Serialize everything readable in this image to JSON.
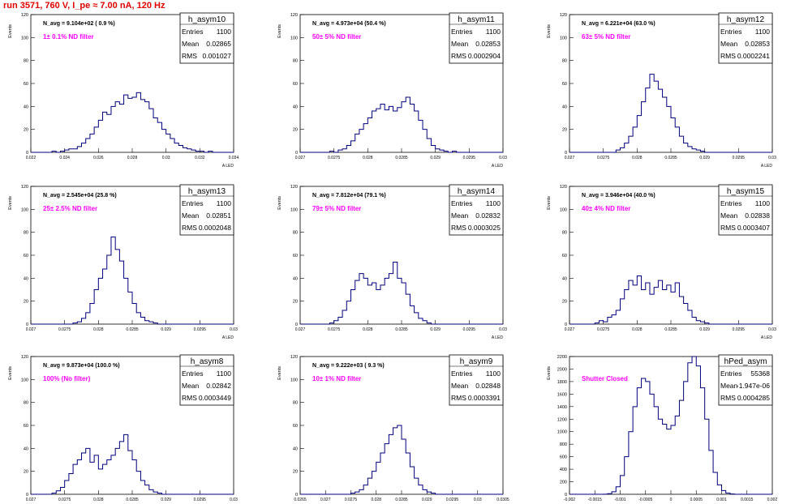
{
  "page": {
    "title": "run 3571,   760 V, I_pe ≈ 7.00 nA, 120 Hz"
  },
  "chart_data": [
    {
      "type": "histogram",
      "name": "h_asym10",
      "stats": {
        "entries": "1100",
        "mean": "0.02865",
        "rms": "0.001027"
      },
      "navg": "N_avg = 9.104e+02 ( 0.9 %)",
      "filter": "1± 0.1% ND filter",
      "xlim": [
        0.022,
        0.034
      ],
      "ylim": [
        0,
        120
      ],
      "xticks": [
        "0.022",
        "0.024",
        "0.026",
        "0.028",
        "0.03",
        "0.032",
        "0.034"
      ],
      "yticks": [
        "0",
        "20",
        "40",
        "60",
        "80",
        "100",
        "120"
      ],
      "ylabel": "Events",
      "xlabel": "A LED",
      "values": [
        0,
        0,
        0,
        0,
        0,
        1,
        0,
        1,
        2,
        3,
        3,
        5,
        8,
        12,
        16,
        22,
        28,
        35,
        33,
        40,
        44,
        42,
        50,
        47,
        48,
        52,
        46,
        44,
        38,
        30,
        26,
        20,
        16,
        12,
        8,
        6,
        4,
        3,
        2,
        1,
        1,
        0,
        1,
        0,
        0,
        0,
        0,
        0
      ]
    },
    {
      "type": "histogram",
      "name": "h_asym11",
      "stats": {
        "entries": "1100",
        "mean": "0.02853",
        "rms": "0.0002904"
      },
      "navg": "N_avg = 4.973e+04 (50.4 %)",
      "filter": "50± 5% ND filter",
      "xlim": [
        0.027,
        0.03
      ],
      "ylim": [
        0,
        120
      ],
      "xticks": [
        "0.027",
        "0.0275",
        "0.028",
        "0.0285",
        "0.029",
        "0.0295",
        "0.03"
      ],
      "yticks": [
        "0",
        "20",
        "40",
        "60",
        "80",
        "100",
        "120"
      ],
      "ylabel": "Events",
      "xlabel": "A LED",
      "values": [
        0,
        0,
        0,
        0,
        0,
        0,
        0,
        1,
        0,
        2,
        3,
        6,
        10,
        16,
        20,
        25,
        30,
        36,
        38,
        42,
        37,
        40,
        36,
        39,
        44,
        48,
        42,
        36,
        28,
        20,
        12,
        6,
        3,
        2,
        1,
        0,
        1,
        0,
        0,
        0,
        0,
        0,
        0,
        0,
        0,
        0,
        0,
        0
      ]
    },
    {
      "type": "histogram",
      "name": "h_asym12",
      "stats": {
        "entries": "1100",
        "mean": "0.02853",
        "rms": "0.0002241"
      },
      "navg": "N_avg = 6.221e+04 (63.0 %)",
      "filter": "63± 5% ND filter",
      "xlim": [
        0.027,
        0.03
      ],
      "ylim": [
        0,
        120
      ],
      "xticks": [
        "0.027",
        "0.0275",
        "0.028",
        "0.0285",
        "0.029",
        "0.0295",
        "0.03"
      ],
      "yticks": [
        "0",
        "20",
        "40",
        "60",
        "80",
        "100",
        "120"
      ],
      "ylabel": "Events",
      "xlabel": "A LED",
      "values": [
        0,
        0,
        0,
        0,
        0,
        0,
        0,
        0,
        0,
        0,
        0,
        2,
        4,
        8,
        14,
        22,
        32,
        44,
        56,
        68,
        62,
        55,
        48,
        40,
        30,
        22,
        14,
        8,
        5,
        3,
        2,
        1,
        0,
        0,
        0,
        0,
        0,
        0,
        0,
        0,
        0,
        0,
        0,
        0,
        0,
        0,
        0,
        0
      ]
    },
    {
      "type": "histogram",
      "name": "h_asym13",
      "stats": {
        "entries": "1100",
        "mean": "0.02851",
        "rms": "0.0002048"
      },
      "navg": "N_avg = 2.545e+04 (25.8 %)",
      "filter": "25± 2.5% ND filter",
      "xlim": [
        0.027,
        0.03
      ],
      "ylim": [
        0,
        120
      ],
      "xticks": [
        "0.027",
        "0.0275",
        "0.028",
        "0.0285",
        "0.029",
        "0.0295",
        "0.03"
      ],
      "yticks": [
        "0",
        "20",
        "40",
        "60",
        "80",
        "100",
        "120"
      ],
      "ylabel": "Events",
      "xlabel": "A LED",
      "values": [
        0,
        0,
        0,
        0,
        0,
        0,
        0,
        0,
        0,
        0,
        1,
        2,
        5,
        10,
        18,
        30,
        40,
        48,
        60,
        76,
        65,
        55,
        40,
        28,
        18,
        10,
        6,
        3,
        2,
        1,
        0,
        0,
        0,
        0,
        0,
        0,
        0,
        0,
        0,
        0,
        0,
        0,
        0,
        0,
        0,
        0,
        0,
        0
      ]
    },
    {
      "type": "histogram",
      "name": "h_asym14",
      "stats": {
        "entries": "1100",
        "mean": "0.02832",
        "rms": "0.0003025"
      },
      "navg": "N_avg = 7.812e+04 (79.1 %)",
      "filter": "79± 5% ND filter",
      "xlim": [
        0.027,
        0.03
      ],
      "ylim": [
        0,
        120
      ],
      "xticks": [
        "0.027",
        "0.0275",
        "0.028",
        "0.0285",
        "0.029",
        "0.0295",
        "0.03"
      ],
      "yticks": [
        "0",
        "20",
        "40",
        "60",
        "80",
        "100",
        "120"
      ],
      "ylabel": "Events",
      "xlabel": "A LED",
      "values": [
        0,
        0,
        0,
        0,
        0,
        0,
        0,
        1,
        3,
        6,
        12,
        20,
        30,
        38,
        44,
        40,
        34,
        36,
        30,
        34,
        40,
        44,
        54,
        40,
        36,
        26,
        16,
        10,
        5,
        3,
        1,
        0,
        0,
        0,
        0,
        0,
        0,
        0,
        0,
        0,
        0,
        0,
        0,
        0,
        0,
        0,
        0,
        0
      ]
    },
    {
      "type": "histogram",
      "name": "h_asym15",
      "stats": {
        "entries": "1100",
        "mean": "0.02838",
        "rms": "0.0003407"
      },
      "navg": "N_avg = 3.946e+04 (40.0 %)",
      "filter": "40± 4% ND filter",
      "xlim": [
        0.027,
        0.03
      ],
      "ylim": [
        0,
        120
      ],
      "xticks": [
        "0.027",
        "0.0275",
        "0.028",
        "0.0285",
        "0.029",
        "0.0295",
        "0.03"
      ],
      "yticks": [
        "0",
        "20",
        "40",
        "60",
        "80",
        "100",
        "120"
      ],
      "ylabel": "Events",
      "xlabel": "A LED",
      "values": [
        0,
        0,
        0,
        0,
        0,
        0,
        1,
        3,
        2,
        6,
        8,
        12,
        22,
        30,
        38,
        34,
        42,
        30,
        36,
        26,
        32,
        38,
        30,
        34,
        28,
        36,
        24,
        18,
        12,
        6,
        3,
        2,
        1,
        0,
        0,
        0,
        0,
        0,
        0,
        0,
        0,
        0,
        0,
        0,
        0,
        0,
        0,
        0
      ]
    },
    {
      "type": "histogram",
      "name": "h_asym8",
      "stats": {
        "entries": "1100",
        "mean": "0.02842",
        "rms": "0.0003449"
      },
      "navg": "N_avg = 9.873e+04 (100.0 %)",
      "filter": "100% (No filter)",
      "xlim": [
        0.027,
        0.03
      ],
      "ylim": [
        0,
        120
      ],
      "xticks": [
        "0.027",
        "0.0275",
        "0.028",
        "0.0285",
        "0.029",
        "0.0295",
        "0.03"
      ],
      "yticks": [
        "0",
        "20",
        "40",
        "60",
        "80",
        "100",
        "120"
      ],
      "ylabel": "Events",
      "xlabel": "A LED",
      "values": [
        0,
        0,
        0,
        0,
        0,
        1,
        3,
        6,
        12,
        18,
        26,
        30,
        36,
        40,
        28,
        34,
        22,
        26,
        30,
        34,
        40,
        46,
        52,
        38,
        30,
        20,
        12,
        8,
        4,
        2,
        1,
        0,
        0,
        0,
        0,
        0,
        0,
        0,
        0,
        0,
        0,
        0,
        0,
        0,
        0,
        0,
        0,
        0
      ]
    },
    {
      "type": "histogram",
      "name": "h_asym9",
      "stats": {
        "entries": "1100",
        "mean": "0.02848",
        "rms": "0.0003391"
      },
      "navg": "N_avg = 9.222e+03 ( 9.3 %)",
      "filter": "10± 1% ND filter",
      "xlim": [
        0.0265,
        0.0305
      ],
      "ylim": [
        0,
        120
      ],
      "xticks": [
        "0.0265",
        "0.027",
        "0.0275",
        "0.028",
        "0.0285",
        "0.029",
        "0.0295",
        "0.03",
        "0.0305"
      ],
      "yticks": [
        "0",
        "20",
        "40",
        "60",
        "80",
        "100",
        "120"
      ],
      "ylabel": "Events",
      "xlabel": "A LED",
      "values": [
        0,
        0,
        0,
        0,
        0,
        0,
        0,
        0,
        0,
        0,
        0,
        0,
        1,
        2,
        4,
        8,
        14,
        20,
        28,
        36,
        44,
        52,
        58,
        60,
        48,
        36,
        24,
        14,
        8,
        4,
        2,
        1,
        0,
        0,
        0,
        0,
        0,
        0,
        0,
        0,
        0,
        0,
        0,
        0,
        0,
        0,
        0,
        0
      ]
    },
    {
      "type": "histogram",
      "name": "hPed_asym",
      "stats": {
        "entries": "55368",
        "mean": "-1.947e-06",
        "rms": "0.0004285"
      },
      "navg": "",
      "filter": "Shutter Closed",
      "xlim": [
        -0.002,
        0.002
      ],
      "ylim": [
        0,
        2200
      ],
      "xticks": [
        "-0.002",
        "-0.0015",
        "-0.001",
        "-0.0005",
        "0",
        "0.0005",
        "0.001",
        "0.0015",
        "0.002"
      ],
      "yticks": [
        "0",
        "200",
        "400",
        "600",
        "800",
        "1000",
        "1200",
        "1400",
        "1600",
        "1800",
        "2000",
        "2200"
      ],
      "ylabel": "Events",
      "xlabel": "A LED",
      "values": [
        0,
        0,
        0,
        0,
        0,
        0,
        0,
        0,
        2,
        10,
        40,
        120,
        300,
        600,
        1000,
        1400,
        1700,
        1850,
        1800,
        1600,
        1400,
        1200,
        1120,
        1040,
        1100,
        1250,
        1500,
        1800,
        2100,
        2200,
        2050,
        1700,
        1200,
        700,
        350,
        150,
        60,
        20,
        5,
        0,
        0,
        0,
        0,
        0,
        0,
        0,
        0,
        0
      ]
    }
  ],
  "colors": {
    "hist": "#00007f",
    "title": "#e00000",
    "filter": "#ff00ff",
    "frame": "#000000",
    "grid": "#777777"
  }
}
